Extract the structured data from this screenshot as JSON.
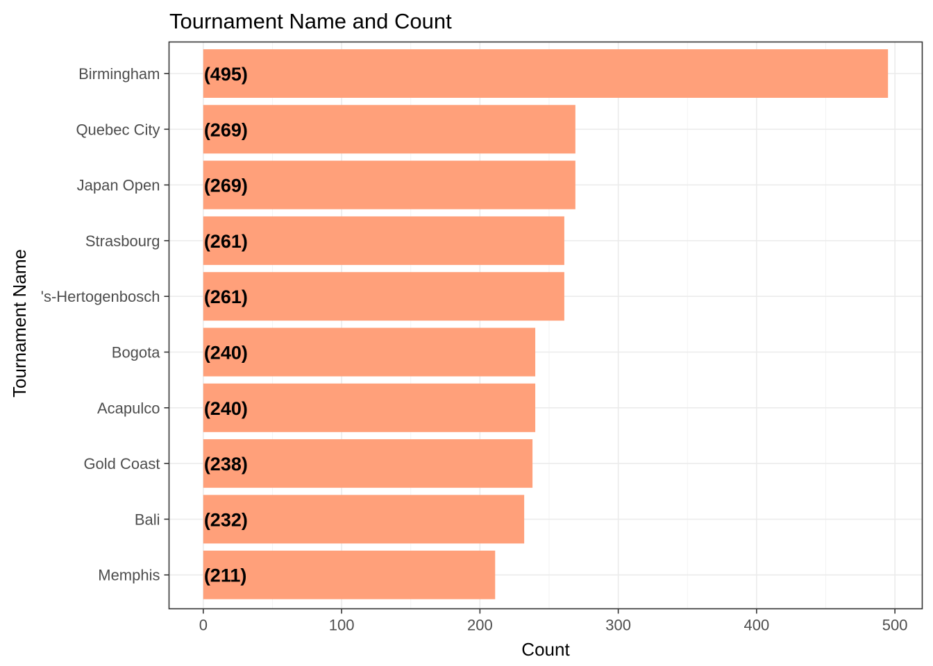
{
  "chart_data": {
    "type": "bar",
    "orientation": "horizontal",
    "title": "Tournament Name and Count",
    "xlabel": "Count",
    "ylabel": "Tournament Name",
    "categories": [
      "Birmingham",
      "Quebec City",
      "Japan Open",
      "Strasbourg",
      "'s-Hertogenbosch",
      "Bogota",
      "Acapulco",
      "Gold Coast",
      "Bali",
      "Memphis"
    ],
    "values": [
      495,
      269,
      269,
      261,
      261,
      240,
      240,
      238,
      232,
      211
    ],
    "data_labels": [
      "(495)",
      "(269)",
      "(269)",
      "(261)",
      "(261)",
      "(240)",
      "(240)",
      "(238)",
      "(232)",
      "(211)"
    ],
    "x_ticks": [
      0,
      100,
      200,
      300,
      400,
      500
    ],
    "x_tick_labels": [
      "0",
      "100",
      "200",
      "300",
      "400",
      "500"
    ],
    "xlim": [
      -24.75,
      519.75
    ],
    "bar_color": "#FFA07A",
    "grid": true,
    "legend": "none"
  }
}
